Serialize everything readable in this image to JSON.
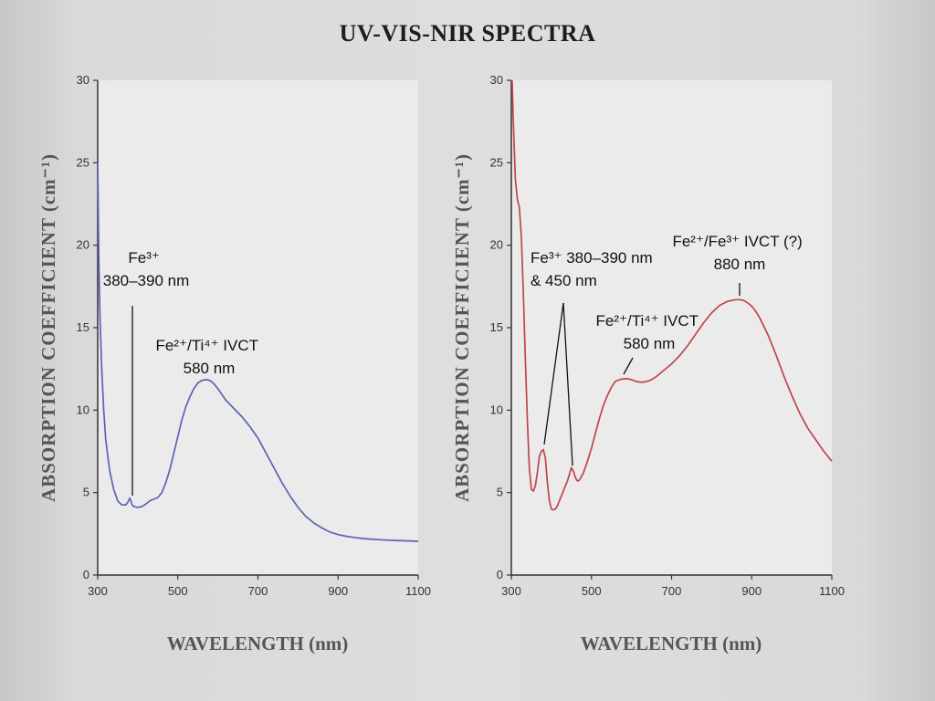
{
  "page": {
    "title": "UV-VIS-NIR SPECTRA"
  },
  "chart_data": [
    {
      "type": "line",
      "title": "",
      "xlabel": "WAVELENGTH (nm)",
      "ylabel": "ABSORPTION COEFFICIENT (cm⁻¹)",
      "xlim": [
        300,
        1100
      ],
      "ylim": [
        0,
        30
      ],
      "xticks": [
        "300",
        "500",
        "700",
        "900",
        "1100"
      ],
      "yticks": [
        "0",
        "5",
        "10",
        "15",
        "20",
        "25",
        "30"
      ],
      "grid": false,
      "series": [
        {
          "color": "#5b63b7",
          "x": [
            300,
            303,
            306,
            310,
            315,
            320,
            330,
            340,
            350,
            360,
            370,
            375,
            380,
            383,
            386,
            390,
            400,
            410,
            420,
            430,
            440,
            450,
            460,
            470,
            480,
            490,
            500,
            510,
            520,
            530,
            540,
            550,
            560,
            570,
            580,
            590,
            600,
            610,
            620,
            640,
            660,
            680,
            700,
            720,
            740,
            760,
            780,
            800,
            820,
            840,
            860,
            880,
            900,
            920,
            940,
            960,
            980,
            1000,
            1020,
            1040,
            1060,
            1080,
            1100
          ],
          "y": [
            25,
            19,
            15.5,
            12.5,
            10,
            8.2,
            6.3,
            5.2,
            4.5,
            4.25,
            4.25,
            4.4,
            4.65,
            4.5,
            4.25,
            4.15,
            4.1,
            4.15,
            4.3,
            4.5,
            4.6,
            4.7,
            5.0,
            5.6,
            6.4,
            7.4,
            8.4,
            9.4,
            10.2,
            10.8,
            11.3,
            11.65,
            11.8,
            11.85,
            11.8,
            11.6,
            11.3,
            10.95,
            10.6,
            10.1,
            9.6,
            9.0,
            8.3,
            7.4,
            6.5,
            5.6,
            4.8,
            4.1,
            3.55,
            3.15,
            2.85,
            2.6,
            2.45,
            2.35,
            2.28,
            2.22,
            2.18,
            2.15,
            2.12,
            2.1,
            2.08,
            2.07,
            2.05
          ]
        }
      ],
      "annotations": [
        {
          "lines": [
            "Fe³⁺",
            "380–390 nm"
          ]
        },
        {
          "lines": [
            "Fe²⁺/Ti⁴⁺ IVCT",
            "580 nm"
          ]
        }
      ]
    },
    {
      "type": "line",
      "title": "",
      "xlabel": "WAVELENGTH (nm)",
      "ylabel": "ABSORPTION COEFFICIENT (cm⁻¹)",
      "xlim": [
        300,
        1100
      ],
      "ylim": [
        0,
        30
      ],
      "xticks": [
        "300",
        "500",
        "700",
        "900",
        "1100"
      ],
      "yticks": [
        "0",
        "5",
        "10",
        "15",
        "20",
        "25",
        "30"
      ],
      "grid": false,
      "series": [
        {
          "color": "#c0454b",
          "x": [
            302,
            305,
            310,
            315,
            320,
            325,
            330,
            335,
            340,
            345,
            350,
            355,
            360,
            365,
            370,
            375,
            380,
            385,
            390,
            395,
            400,
            405,
            410,
            415,
            420,
            425,
            430,
            435,
            440,
            445,
            450,
            455,
            460,
            465,
            470,
            480,
            490,
            500,
            510,
            520,
            530,
            540,
            550,
            560,
            570,
            580,
            590,
            600,
            610,
            620,
            630,
            640,
            650,
            660,
            670,
            680,
            690,
            700,
            720,
            740,
            760,
            780,
            800,
            820,
            840,
            860,
            870,
            880,
            890,
            900,
            910,
            920,
            940,
            960,
            980,
            1000,
            1020,
            1040,
            1060,
            1080,
            1100
          ],
          "y": [
            30,
            27.5,
            24,
            22.8,
            22.3,
            20.5,
            17,
            13,
            9.5,
            6.5,
            5.2,
            5.1,
            5.4,
            6.2,
            7.2,
            7.5,
            7.6,
            7.1,
            5.6,
            4.5,
            4.0,
            3.95,
            4.0,
            4.2,
            4.5,
            4.8,
            5.1,
            5.4,
            5.7,
            6.1,
            6.5,
            6.3,
            5.9,
            5.7,
            5.75,
            6.2,
            6.9,
            7.7,
            8.6,
            9.5,
            10.3,
            10.9,
            11.4,
            11.75,
            11.85,
            11.9,
            11.9,
            11.85,
            11.75,
            11.7,
            11.7,
            11.75,
            11.85,
            12.0,
            12.2,
            12.4,
            12.6,
            12.8,
            13.3,
            13.9,
            14.6,
            15.3,
            15.9,
            16.35,
            16.6,
            16.7,
            16.7,
            16.65,
            16.5,
            16.3,
            16.0,
            15.6,
            14.6,
            13.4,
            12.1,
            10.9,
            9.8,
            8.9,
            8.2,
            7.5,
            6.9
          ]
        }
      ],
      "annotations": [
        {
          "lines": [
            "Fe³⁺ 380–390 nm",
            "& 450 nm"
          ]
        },
        {
          "lines": [
            "Fe²⁺/Ti⁴⁺ IVCT",
            "580 nm"
          ]
        },
        {
          "lines": [
            "Fe²⁺/Fe³⁺ IVCT (?)",
            "880 nm"
          ]
        }
      ]
    }
  ]
}
